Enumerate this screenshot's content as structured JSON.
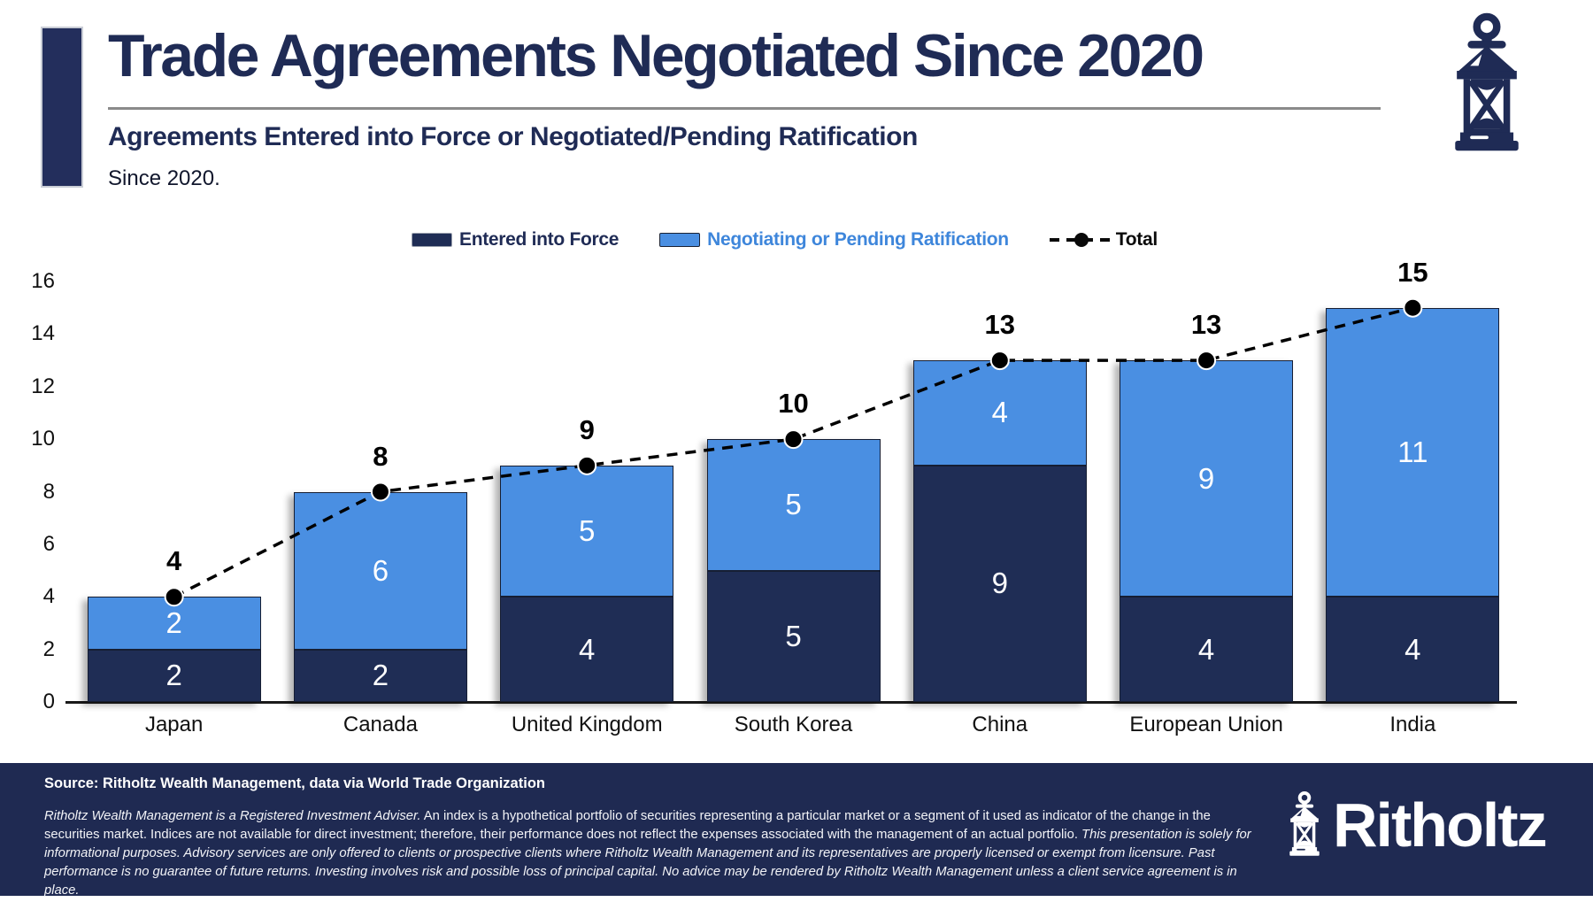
{
  "header": {
    "title": "Trade Agreements Negotiated Since 2020",
    "subtitle": "Agreements Entered into Force or Negotiated/Pending Ratification",
    "subnote": "Since 2020."
  },
  "legend": {
    "entered_label": "Entered into Force",
    "negotiating_label": "Negotiating or Pending Ratification",
    "total_label": "Total"
  },
  "colors": {
    "navy_bar": "#1F2D55",
    "blue_bar": "#4A8FE2",
    "footer_bg": "#1F2A52",
    "accent_bar": "#232E5C",
    "title_navy": "#1F2B55",
    "legend_blue_text": "#3E86DB",
    "total_line": "#000000"
  },
  "chart_data": {
    "type": "bar",
    "stacked": true,
    "title": "Trade Agreements Negotiated Since 2020",
    "categories": [
      "Japan",
      "Canada",
      "United Kingdom",
      "South Korea",
      "China",
      "European Union",
      "India"
    ],
    "series": [
      {
        "name": "Entered into Force",
        "values": [
          2,
          2,
          4,
          5,
          9,
          4,
          4
        ],
        "color": "#1F2D55"
      },
      {
        "name": "Negotiating or Pending Ratification",
        "values": [
          2,
          6,
          5,
          5,
          4,
          9,
          11
        ],
        "color": "#4A8FE2"
      }
    ],
    "totals": {
      "name": "Total",
      "values": [
        4,
        8,
        9,
        10,
        13,
        13,
        15
      ]
    },
    "xlabel": "",
    "ylabel": "",
    "ylim": [
      0,
      16
    ],
    "yticks": [
      0,
      2,
      4,
      6,
      8,
      10,
      12,
      14,
      16
    ],
    "grid": false,
    "legend_position": "top"
  },
  "footer": {
    "source": "Source: Ritholtz Wealth Management, data via World Trade Organization",
    "disclaimer_italic_1": "Ritholtz Wealth Management is a Registered Investment Adviser.",
    "disclaimer_normal": " An index is a hypothetical portfolio of securities representing a particular market or a segment of it used as indicator of the change in the securities market. Indices are not available for direct investment; therefore, their performance does not reflect the expenses associated with the management of an actual portfolio.",
    "disclaimer_italic_2": " This presentation is solely for informational purposes. Advisory services are only offered to clients or prospective clients where Ritholtz Wealth Management and its representatives are properly licensed or exempt from licensure. Past performance is no guarantee of future returns. Investing involves risk and possible loss of principal capital. No advice may be rendered by Ritholtz Wealth Management unless a client service agreement is in place.",
    "logo_text": "Ritholtz"
  }
}
